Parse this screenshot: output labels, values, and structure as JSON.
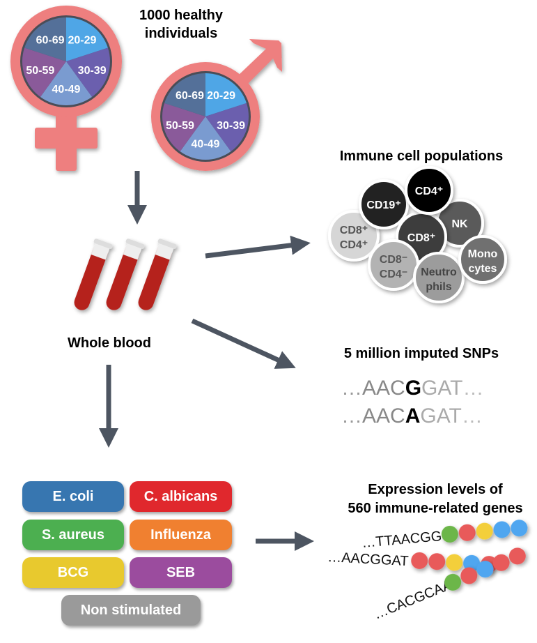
{
  "title": "1000 healthy individuals",
  "title_lines": [
    "1000 healthy",
    "individuals"
  ],
  "age_groups": [
    {
      "label": "20-29",
      "color": "#4fa6e6"
    },
    {
      "label": "30-39",
      "color": "#6b5fae"
    },
    {
      "label": "40-49",
      "color": "#7a9bd0"
    },
    {
      "label": "50-59",
      "color": "#8a5a9a"
    },
    {
      "label": "60-69",
      "color": "#547099"
    }
  ],
  "symbol_color": "#ee7f7f",
  "arrow_color": "#4d5561",
  "sample_label": "Whole blood",
  "cells": {
    "title": "Immune cell populations",
    "items": [
      {
        "label": "CD8⁺ CD4⁺",
        "l1": "CD8⁺",
        "l2": "CD4⁺",
        "fill": "#d6d6d6",
        "text": "#555"
      },
      {
        "label": "CD19⁺",
        "l1": "CD19⁺",
        "l2": "",
        "fill": "#222",
        "text": "#fff"
      },
      {
        "label": "NK",
        "l1": "NK",
        "l2": "",
        "fill": "#5a5a5a",
        "text": "#fff"
      },
      {
        "label": "CD8⁺",
        "l1": "CD8⁺",
        "l2": "",
        "fill": "#3c3c3c",
        "text": "#fff"
      },
      {
        "label": "CD4⁺",
        "l1": "CD4⁺",
        "l2": "",
        "fill": "#000",
        "text": "#fff"
      },
      {
        "label": "CD8⁻ CD4⁻",
        "l1": "CD8⁻",
        "l2": "CD4⁻",
        "fill": "#b3b3b3",
        "text": "#555"
      },
      {
        "label": "Neutrophils",
        "l1": "Neutro",
        "l2": "phils",
        "fill": "#9c9c9c",
        "text": "#444"
      },
      {
        "label": "Monocytes",
        "l1": "Mono",
        "l2": "cytes",
        "fill": "#707070",
        "text": "#fff"
      }
    ]
  },
  "snps": {
    "title": "5 million imputed SNPs",
    "seq1": {
      "pre": "AAC",
      "alt": "G",
      "post": "GAT"
    },
    "seq2": {
      "pre": "AAC",
      "alt": "A",
      "post": "GAT"
    },
    "ellipsis": "…"
  },
  "stimuli": [
    {
      "label": "E. coli",
      "color": "#3776b0"
    },
    {
      "label": "C. albicans",
      "color": "#e0282d"
    },
    {
      "label": "S. aureus",
      "color": "#4caf50"
    },
    {
      "label": "Influenza",
      "color": "#f08030"
    },
    {
      "label": "BCG",
      "color": "#e8c92e"
    },
    {
      "label": "SEB",
      "color": "#9b4c9e"
    },
    {
      "label": "Non stimulated",
      "color": "#9a9a9a"
    }
  ],
  "expression": {
    "title_lines": [
      "Expression levels of",
      "560 immune-related genes"
    ],
    "reads": [
      {
        "seq": "…TTAACGG",
        "beads": [
          "#6cb64a",
          "#e85a5a",
          "#f3cf3a",
          "#4fa6f0",
          "#4fa6f0"
        ]
      },
      {
        "seq": "…AACGGAT",
        "beads": [
          "#e85a5a",
          "#e85a5a",
          "#f3cf3a",
          "#4fa6f0",
          "#e85a5a"
        ]
      },
      {
        "seq": "…CACGCAA",
        "beads": [
          "#6cb64a",
          "#e85a5a",
          "#4fa6f0",
          "#e85a5a",
          "#e85a5a"
        ]
      }
    ]
  }
}
